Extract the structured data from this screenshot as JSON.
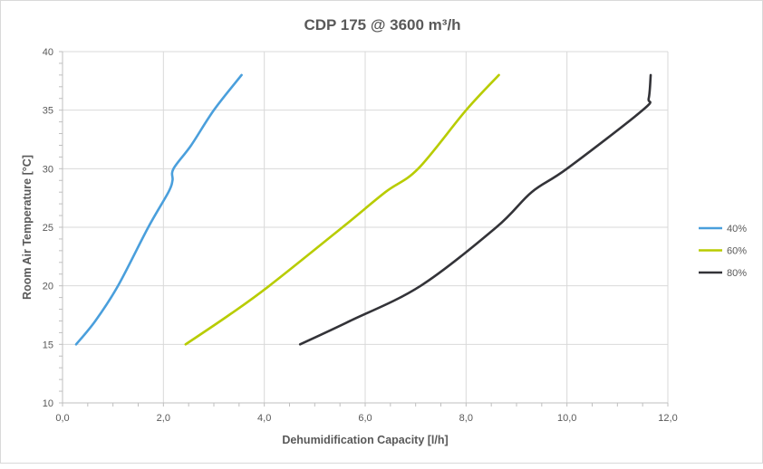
{
  "chart_data": {
    "type": "line",
    "title": "CDP 175 @ 3600 m³/h",
    "xlabel": "Dehumidification Capacity [l/h]",
    "ylabel": "Room Air  Temperature [°C]",
    "xlim": [
      0,
      12
    ],
    "ylim": [
      10,
      40
    ],
    "x_ticks": [
      "0,0",
      "2,0",
      "4,0",
      "6,0",
      "8,0",
      "10,0",
      "12,0"
    ],
    "y_ticks": [
      "10",
      "15",
      "20",
      "25",
      "30",
      "35",
      "40"
    ],
    "grid": true,
    "legend_position": "right",
    "series": [
      {
        "name": "40%",
        "color": "#4a9fdc",
        "points": [
          [
            0.27,
            15
          ],
          [
            0.65,
            17
          ],
          [
            1.1,
            20
          ],
          [
            1.7,
            25
          ],
          [
            2.1,
            28
          ],
          [
            2.18,
            29
          ],
          [
            2.2,
            30
          ],
          [
            2.55,
            32
          ],
          [
            3.0,
            35
          ],
          [
            3.55,
            38
          ]
        ]
      },
      {
        "name": "60%",
        "color": "#b8cc00",
        "points": [
          [
            2.44,
            15
          ],
          [
            3.3,
            17.5
          ],
          [
            4.1,
            20
          ],
          [
            5.55,
            25
          ],
          [
            6.4,
            28
          ],
          [
            7.05,
            30
          ],
          [
            8.0,
            35
          ],
          [
            8.65,
            38
          ]
        ]
      },
      {
        "name": "80%",
        "color": "#333338",
        "points": [
          [
            4.71,
            15
          ],
          [
            5.7,
            17
          ],
          [
            7.1,
            20
          ],
          [
            8.6,
            25
          ],
          [
            9.3,
            28
          ],
          [
            10.0,
            30
          ],
          [
            11.5,
            35
          ],
          [
            11.62,
            36
          ],
          [
            11.66,
            38
          ]
        ]
      }
    ]
  }
}
